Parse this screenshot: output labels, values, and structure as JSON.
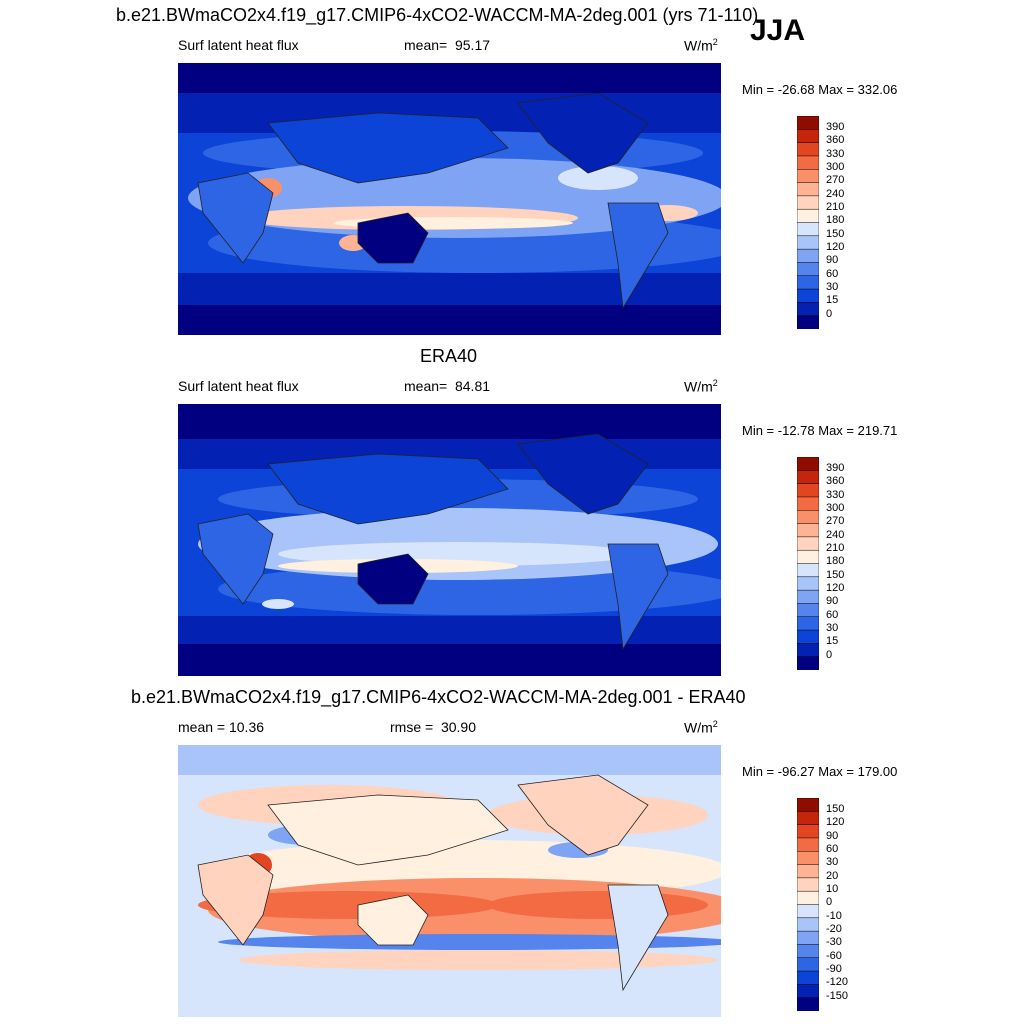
{
  "season": "JJA",
  "colors": {
    "levels_0_390": [
      "#000080",
      "#0321B2",
      "#0B44D6",
      "#2E65E4",
      "#5585EC",
      "#7FA4F3",
      "#A8C4F8",
      "#D6E5FC",
      "#FFF0E0",
      "#FFD3BD",
      "#FDB394",
      "#FA906A",
      "#F26B43",
      "#E14621",
      "#C4250B",
      "#8E0C00"
    ],
    "levels_diff": [
      "#000080",
      "#0321B2",
      "#0B44D6",
      "#2E65E4",
      "#5585EC",
      "#7FA4F3",
      "#A8C4F8",
      "#D6E5FC",
      "#FFF0E0",
      "#FFD3BD",
      "#FDB394",
      "#FA906A",
      "#F26B43",
      "#E14621",
      "#C4250B",
      "#8E0C00"
    ]
  },
  "panels": [
    {
      "title": "b.e21.BWmaCO2x4.f19_g17.CMIP6-4xCO2-WACCM-MA-2deg.001 (yrs 71-110)",
      "left_label": "Surf latent heat flux",
      "stat_label": "mean=",
      "stat_value": "95.17",
      "units": "W/m",
      "units_sup": "2",
      "minmax": "Min = -26.68 Max = 332.06"
    },
    {
      "title": "ERA40",
      "left_label": "Surf latent heat flux",
      "stat_label": "mean=",
      "stat_value": "84.81",
      "units": "W/m",
      "units_sup": "2",
      "minmax": "Min = -12.78 Max = 219.71"
    },
    {
      "title": "b.e21.BWmaCO2x4.f19_g17.CMIP6-4xCO2-WACCM-MA-2deg.001 - ERA40",
      "left_label": "mean =  10.36",
      "stat_label": "rmse =",
      "stat_value": "30.90",
      "units": "W/m",
      "units_sup": "2",
      "minmax": "Min = -96.27 Max = 179.00"
    }
  ],
  "chart_data": [
    {
      "type": "heatmap",
      "title": "b.e21.BWmaCO2x4.f19_g17.CMIP6-4xCO2-WACCM-MA-2deg.001 (yrs 71-110)",
      "variable": "Surf latent heat flux",
      "mean": 95.17,
      "min": -26.68,
      "max": 332.06,
      "units": "W/m2",
      "colorbar_levels": [
        "390",
        "360",
        "330",
        "300",
        "270",
        "240",
        "210",
        "180",
        "150",
        "120",
        "90",
        "60",
        "30",
        "15",
        "0"
      ]
    },
    {
      "type": "heatmap",
      "title": "ERA40",
      "variable": "Surf latent heat flux",
      "mean": 84.81,
      "min": -12.78,
      "max": 219.71,
      "units": "W/m2",
      "colorbar_levels": [
        "390",
        "360",
        "330",
        "300",
        "270",
        "240",
        "210",
        "180",
        "150",
        "120",
        "90",
        "60",
        "30",
        "15",
        "0"
      ]
    },
    {
      "type": "heatmap",
      "title": "b.e21.BWmaCO2x4.f19_g17.CMIP6-4xCO2-WACCM-MA-2deg.001 - ERA40",
      "mean": 10.36,
      "rmse": 30.9,
      "min": -96.27,
      "max": 179.0,
      "units": "W/m2",
      "colorbar_levels": [
        "150",
        "120",
        "90",
        "60",
        "30",
        "20",
        "10",
        "0",
        "-10",
        "-20",
        "-30",
        "-60",
        "-90",
        "-120",
        "-150"
      ]
    }
  ]
}
